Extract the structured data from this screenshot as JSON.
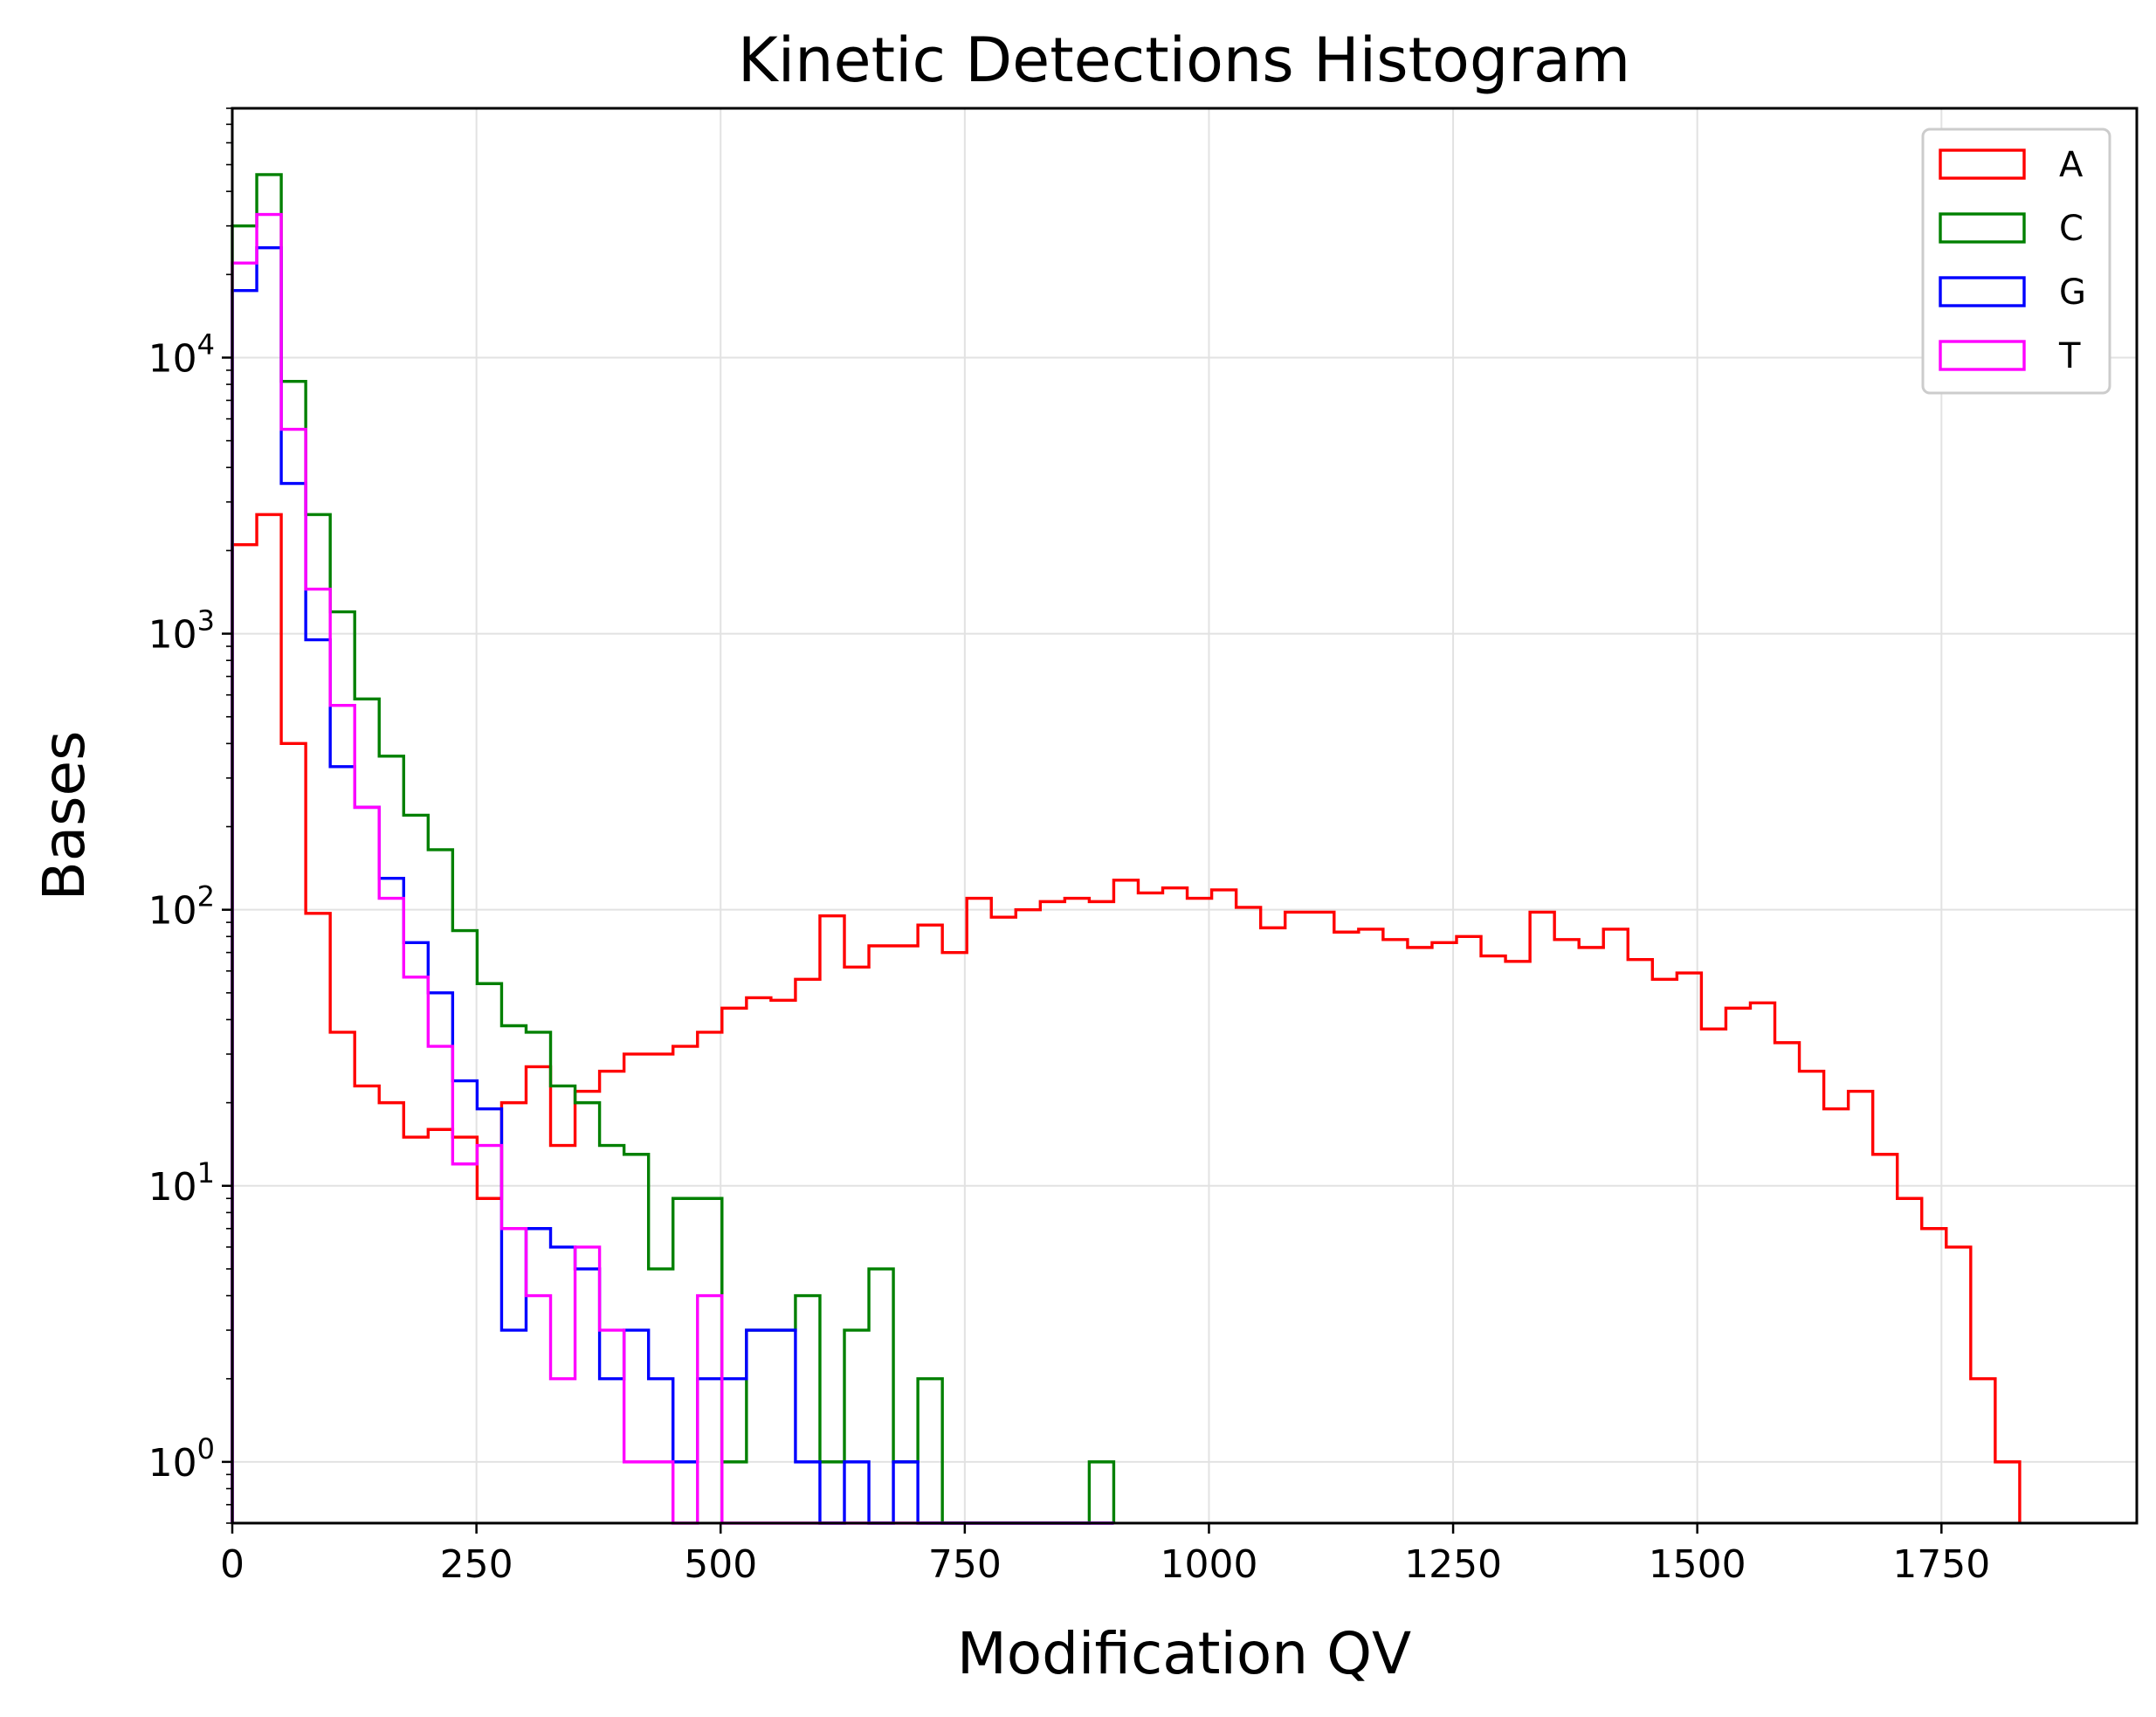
{
  "chart_data": {
    "type": "histogram",
    "title": "Kinetic Detections Histogram",
    "xlabel": "Modification QV",
    "ylabel": "Bases",
    "xlim": [
      0,
      1950
    ],
    "ylim": [
      0.6,
      80000
    ],
    "yscale": "log",
    "grid": true,
    "legend_position": "top-right",
    "bin_width": 25.07,
    "x_ticks": [
      "0",
      "250",
      "500",
      "750",
      "1000",
      "1250",
      "1500",
      "1750"
    ],
    "x_tick_values": [
      0,
      250,
      500,
      750,
      1000,
      1250,
      1500,
      1750
    ],
    "y_ticks": [
      {
        "value": 1,
        "base": "10",
        "exp": "0"
      },
      {
        "value": 10,
        "base": "10",
        "exp": "1"
      },
      {
        "value": 100,
        "base": "10",
        "exp": "2"
      },
      {
        "value": 1000,
        "base": "10",
        "exp": "3"
      },
      {
        "value": 10000,
        "base": "10",
        "exp": "4"
      }
    ],
    "series": [
      {
        "name": "A",
        "color": "#ff0000",
        "values": [
          2100,
          2700,
          400,
          97,
          36,
          23,
          20,
          15,
          16,
          15,
          9,
          20,
          27,
          14,
          22,
          26,
          30,
          30,
          32,
          36,
          44,
          48,
          47,
          56,
          95,
          62,
          74,
          74,
          88,
          70,
          110,
          94,
          100,
          107,
          110,
          107,
          128,
          115,
          120,
          110,
          118,
          102,
          86,
          98,
          98,
          83,
          85,
          78,
          73,
          76,
          80,
          68,
          65,
          98,
          78,
          73,
          85,
          66,
          56,
          59,
          37,
          44,
          46,
          33,
          26,
          19,
          22,
          13,
          9,
          7,
          6,
          2,
          1
        ]
      },
      {
        "name": "C",
        "color": "#008000",
        "values": [
          30000,
          46000,
          8200,
          2700,
          1200,
          580,
          360,
          220,
          165,
          84,
          54,
          38,
          36,
          23,
          20,
          14,
          13,
          5,
          9,
          9,
          1,
          3,
          3,
          4,
          1,
          3,
          5,
          1,
          2,
          0,
          0,
          0,
          0,
          0,
          0,
          1
        ]
      },
      {
        "name": "G",
        "color": "#0000ff",
        "values": [
          17500,
          25000,
          3500,
          950,
          330,
          235,
          130,
          76,
          50,
          24,
          19,
          3,
          7,
          6,
          5,
          2,
          3,
          2,
          1,
          2,
          2,
          3,
          3,
          1,
          0,
          1,
          0,
          1,
          0,
          0,
          0,
          0,
          0,
          0,
          0,
          0
        ]
      },
      {
        "name": "T",
        "color": "#ff00ff",
        "values": [
          22000,
          33000,
          5500,
          1450,
          550,
          235,
          110,
          57,
          32,
          12,
          14,
          7,
          4,
          2,
          6,
          3,
          1,
          1,
          0,
          4,
          0,
          0,
          0,
          0,
          0,
          0,
          0,
          0,
          0,
          0,
          0,
          0,
          0,
          0,
          0,
          0
        ]
      }
    ]
  }
}
